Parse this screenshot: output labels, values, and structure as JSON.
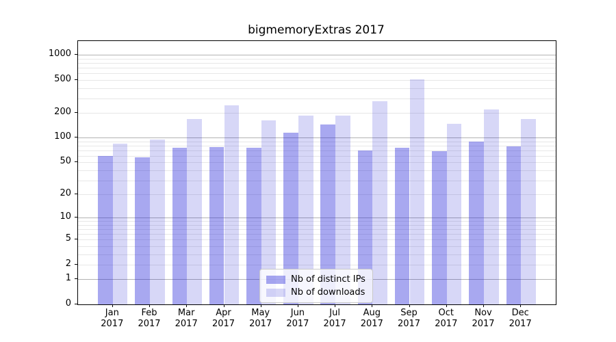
{
  "title": "bigmemoryExtras 2017",
  "chart_data": {
    "type": "bar",
    "title": "bigmemoryExtras 2017",
    "categories": [
      "Jan 2017",
      "Feb 2017",
      "Mar 2017",
      "Apr 2017",
      "May 2017",
      "Jun 2017",
      "Jul 2017",
      "Aug 2017",
      "Sep 2017",
      "Oct 2017",
      "Nov 2017",
      "Dec 2017"
    ],
    "series": [
      {
        "name": "Nb of distinct IPs",
        "color": "#2626da",
        "alpha": 0.4,
        "values": [
          60,
          58,
          75,
          77,
          76,
          116,
          145,
          70,
          75,
          69,
          90,
          78
        ]
      },
      {
        "name": "Nb of downloads",
        "color": "#0808d0",
        "alpha": 0.16,
        "values": [
          85,
          95,
          168,
          245,
          162,
          185,
          184,
          277,
          510,
          147,
          221,
          167
        ]
      }
    ],
    "xlabel": "",
    "ylabel": "",
    "yscale": "log1p",
    "ylim": [
      0,
      1460
    ],
    "y_ticks": [
      0,
      1,
      2,
      5,
      10,
      20,
      50,
      100,
      200,
      500,
      1000
    ],
    "y_major_gridlines": [
      1,
      10,
      100,
      1000
    ],
    "y_minor_gridlines": [
      2,
      3,
      4,
      5,
      6,
      7,
      8,
      9,
      20,
      30,
      40,
      50,
      60,
      70,
      80,
      90,
      200,
      300,
      400,
      500,
      600,
      700,
      800,
      900
    ],
    "grid": true,
    "legend_position": "lower center",
    "colors": {
      "bar_dark_on_white": "#a8a8f0",
      "bar_light_on_white": "#d8d8f8",
      "grid_major": "#b3b3b3",
      "grid_minor": "#e7e7e7",
      "axis": "#000000"
    }
  }
}
